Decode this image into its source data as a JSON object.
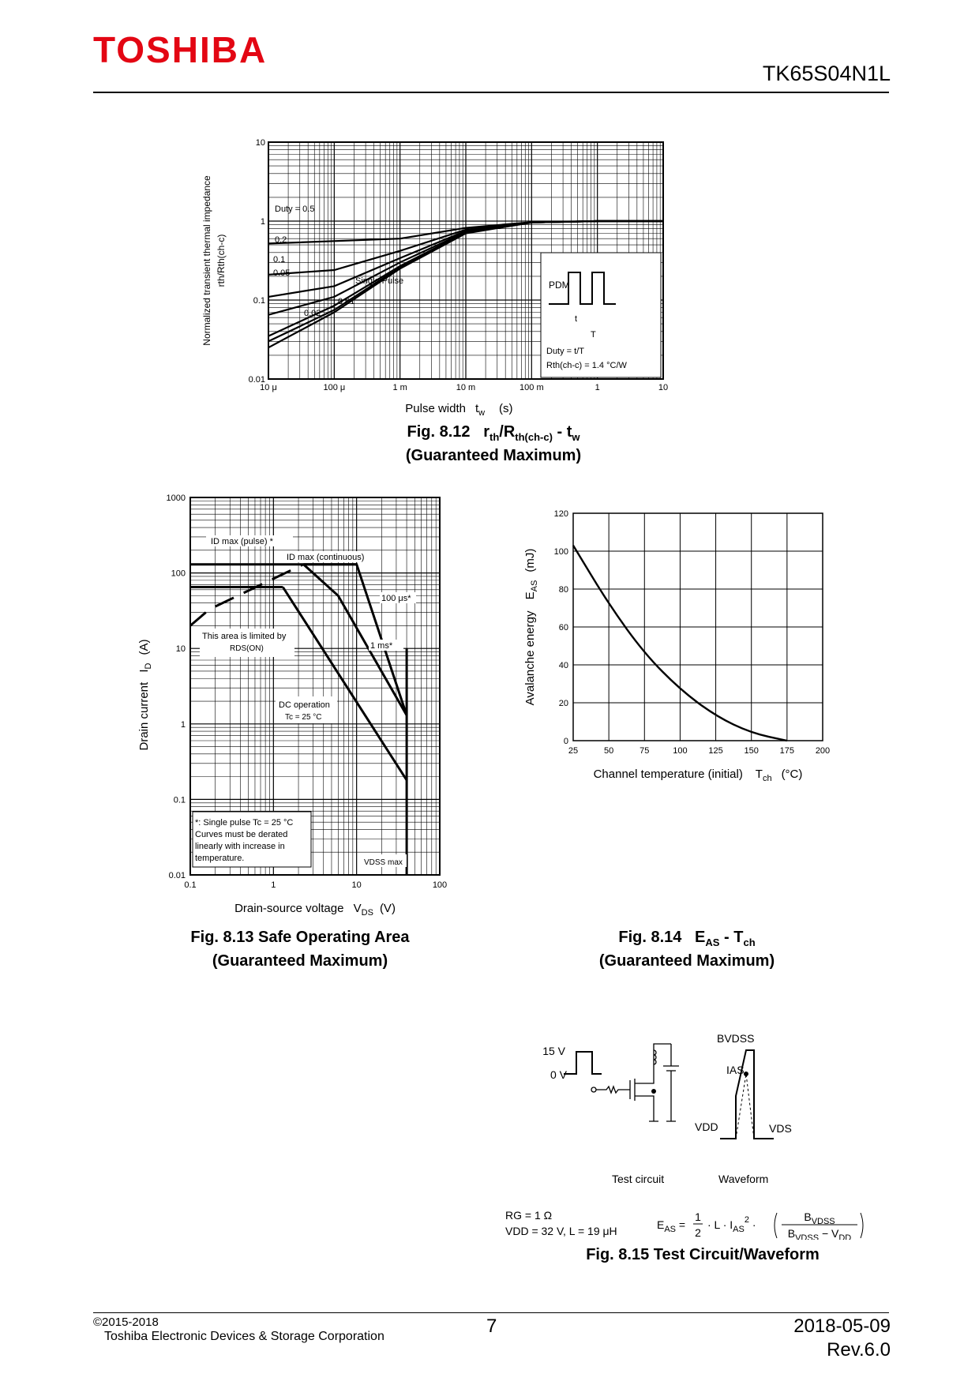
{
  "header": {
    "logo": "TOSHIBA",
    "part_number": "TK65S04N1L"
  },
  "footer": {
    "copyright": "©2015-2018",
    "company": "Toshiba Electronic Devices & Storage Corporation",
    "page": "7",
    "date": "2018-05-09",
    "rev": "Rev.6.0"
  },
  "colors": {
    "logo": "#e30613",
    "ink": "#000000"
  },
  "fig812": {
    "caption1": "Fig. 8.12",
    "caption2": "(Guaranteed Maximum)",
    "xlabel_main": "Pulse width",
    "xlabel_unit": "(s)",
    "ylabel1": "Normalized transient thermal impedance",
    "ylabel2": "rth/Rth(ch-c)",
    "curve_labels": [
      "Duty = 0.5",
      "0.2",
      "0.1",
      "0.05",
      "Single Pulse",
      "0.01",
      "0.02"
    ],
    "inset": {
      "pdm": "PDM",
      "t": "t",
      "T": "T",
      "duty": "Duty = t/T",
      "rth": "Rth(ch-c) = 1.4 °C/W"
    }
  },
  "fig813": {
    "caption1": "Fig. 8.13    Safe Operating Area",
    "caption2": "(Guaranteed Maximum)",
    "xlabel": "Drain-source voltage",
    "xunit": "(V)",
    "ylabel": "Drain  current",
    "yunit": "(A)",
    "annotations": {
      "id_pulse": "ID max (pulse) *",
      "id_cont": "ID max (continuous)",
      "us100": "100 μs*",
      "ms1": "1 ms*",
      "rds1": "This area is limited by",
      "rds2": "RDS(ON)",
      "dc1": "DC operation",
      "dc2": "Tc = 25 °C",
      "note1": "*: Single pulse Tc = 25 °C",
      "note2": "Curves must be derated",
      "note3": "linearly with increase in",
      "note4": "temperature.",
      "vdss": "VDSS max"
    }
  },
  "fig814": {
    "caption1": "Fig. 8.14",
    "caption2": "(Guaranteed Maximum)",
    "xlabel": "Channel temperature (initial)",
    "xunit": "(°C)",
    "ylabel": "Avalanche energy",
    "yunit": "(mJ)"
  },
  "fig815": {
    "caption": "Fig. 8.15    Test Circuit/Waveform",
    "v15": "15 V",
    "v0": "0 V",
    "bvdss": "BVDSS",
    "ias": "IAS",
    "vdd": "VDD",
    "vds": "VDS",
    "test_circuit": "Test circuit",
    "waveform": "Waveform",
    "rg": "RG = 1 Ω",
    "cond": "VDD = 32 V, L = 19 μH"
  },
  "chart_data": [
    {
      "type": "line",
      "name_id": "fig812",
      "x_scale": "log",
      "y_scale": "log",
      "xlim": [
        1e-05,
        10
      ],
      "ylim": [
        0.01,
        10
      ],
      "x_ticks": [
        "10 μ",
        "100 μ",
        "1 m",
        "10 m",
        "100 m",
        "1",
        "10"
      ],
      "y_ticks": [
        "0.01",
        "0.1",
        "1",
        "10"
      ],
      "series": [
        {
          "name": "Duty = 0.5",
          "x": [
            1e-05,
            0.001,
            0.01,
            0.1,
            1,
            10
          ],
          "y": [
            0.52,
            0.6,
            0.82,
            0.97,
            1.0,
            1.0
          ]
        },
        {
          "name": "0.2",
          "x": [
            1e-05,
            0.0001,
            0.001,
            0.01,
            0.1,
            1,
            10
          ],
          "y": [
            0.21,
            0.24,
            0.42,
            0.78,
            0.96,
            1.0,
            1.0
          ]
        },
        {
          "name": "0.1",
          "x": [
            1e-05,
            0.0001,
            0.001,
            0.01,
            0.1,
            1,
            10
          ],
          "y": [
            0.11,
            0.15,
            0.34,
            0.75,
            0.96,
            1.0,
            1.0
          ]
        },
        {
          "name": "0.05",
          "x": [
            1e-05,
            0.0001,
            0.001,
            0.01,
            0.1,
            1,
            10
          ],
          "y": [
            0.065,
            0.11,
            0.3,
            0.73,
            0.96,
            1.0,
            1.0
          ]
        },
        {
          "name": "0.02",
          "x": [
            1e-05,
            0.0001,
            0.001,
            0.01,
            0.1,
            1,
            10
          ],
          "y": [
            0.035,
            0.085,
            0.27,
            0.72,
            0.96,
            1.0,
            1.0
          ]
        },
        {
          "name": "0.01",
          "x": [
            1e-05,
            0.0001,
            0.001,
            0.01,
            0.1,
            1,
            10
          ],
          "y": [
            0.03,
            0.075,
            0.26,
            0.71,
            0.96,
            1.0,
            1.0
          ]
        },
        {
          "name": "Single Pulse",
          "x": [
            1e-05,
            0.0001,
            0.001,
            0.01,
            0.1,
            1,
            10
          ],
          "y": [
            0.025,
            0.07,
            0.25,
            0.7,
            0.96,
            1.0,
            1.0
          ]
        }
      ]
    },
    {
      "type": "line",
      "name_id": "fig813",
      "x_scale": "log",
      "y_scale": "log",
      "xlim": [
        0.1,
        100
      ],
      "ylim": [
        0.01,
        1000
      ],
      "x_ticks": [
        "0.1",
        "1",
        "10",
        "100"
      ],
      "y_ticks": [
        "0.01",
        "0.1",
        "1",
        "10",
        "100",
        "1000"
      ],
      "series": [
        {
          "name": "ID max (pulse)",
          "x": [
            0.1,
            10
          ],
          "y": [
            130,
            130
          ]
        },
        {
          "name": "ID max (continuous)",
          "x": [
            0.1,
            1.3
          ],
          "y": [
            65,
            65
          ]
        },
        {
          "name": "RDS(ON) limit",
          "x": [
            0.1,
            0.17,
            2.3
          ],
          "y": [
            20,
            33,
            130
          ]
        },
        {
          "name": "100 μs",
          "x": [
            2.3,
            10,
            40
          ],
          "y": [
            130,
            130,
            1.3
          ]
        },
        {
          "name": "1 ms",
          "x": [
            2.3,
            6,
            40
          ],
          "y": [
            130,
            50,
            1.3
          ]
        },
        {
          "name": "DC operation",
          "x": [
            1.3,
            40
          ],
          "y": [
            65,
            0.18
          ]
        },
        {
          "name": "VDSS max",
          "x": [
            40,
            40
          ],
          "y": [
            0.01,
            10
          ]
        }
      ]
    },
    {
      "type": "line",
      "name_id": "fig814",
      "xlim": [
        25,
        200
      ],
      "ylim": [
        0,
        120
      ],
      "x_ticks": [
        "25",
        "50",
        "75",
        "100",
        "125",
        "150",
        "175",
        "200"
      ],
      "y_ticks": [
        "0",
        "20",
        "40",
        "60",
        "80",
        "100",
        "120"
      ],
      "series": [
        {
          "name": "EAS",
          "x": [
            25,
            50,
            75,
            100,
            125,
            150,
            175
          ],
          "y": [
            103,
            72,
            46,
            27,
            13,
            4,
            0
          ]
        }
      ]
    }
  ]
}
